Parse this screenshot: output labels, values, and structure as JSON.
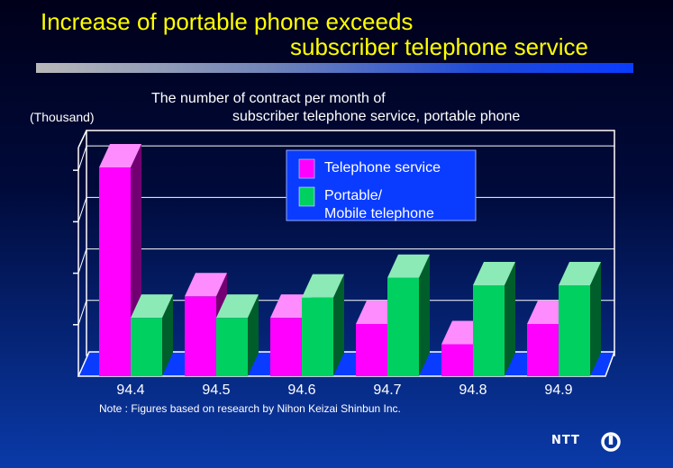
{
  "title": {
    "line1": "Increase of portable phone exceeds",
    "line2": "subscriber telephone service"
  },
  "chart_data": {
    "type": "bar",
    "title": "The number of contract per month of subscriber telephone service, portable phone",
    "title_lines": [
      "The number of contract per month of",
      "subscriber telephone service, portable phone"
    ],
    "ylabel": "(Thousand)",
    "categories": [
      "94.4",
      "94.5",
      "94.6",
      "94.7",
      "94.8",
      "94.9"
    ],
    "series": [
      {
        "name": "Telephone service",
        "values": [
          340,
          130,
          95,
          85,
          52,
          85
        ],
        "color": "#ff00ff"
      },
      {
        "name": "Portable/\nMobile telephone",
        "values": [
          95,
          95,
          128,
          160,
          148,
          148
        ],
        "color": "#00d060"
      }
    ],
    "ylim": [
      0,
      400
    ],
    "grid": true,
    "legend_position": "top-right"
  },
  "note": "Note : Figures based on research by Nihon Keizai Shinbun Inc.",
  "logo": {
    "text": "NTT"
  },
  "colors": {
    "title": "#ffff00",
    "floor": "#0a3cff",
    "legend_bg": "#0a3cff"
  }
}
